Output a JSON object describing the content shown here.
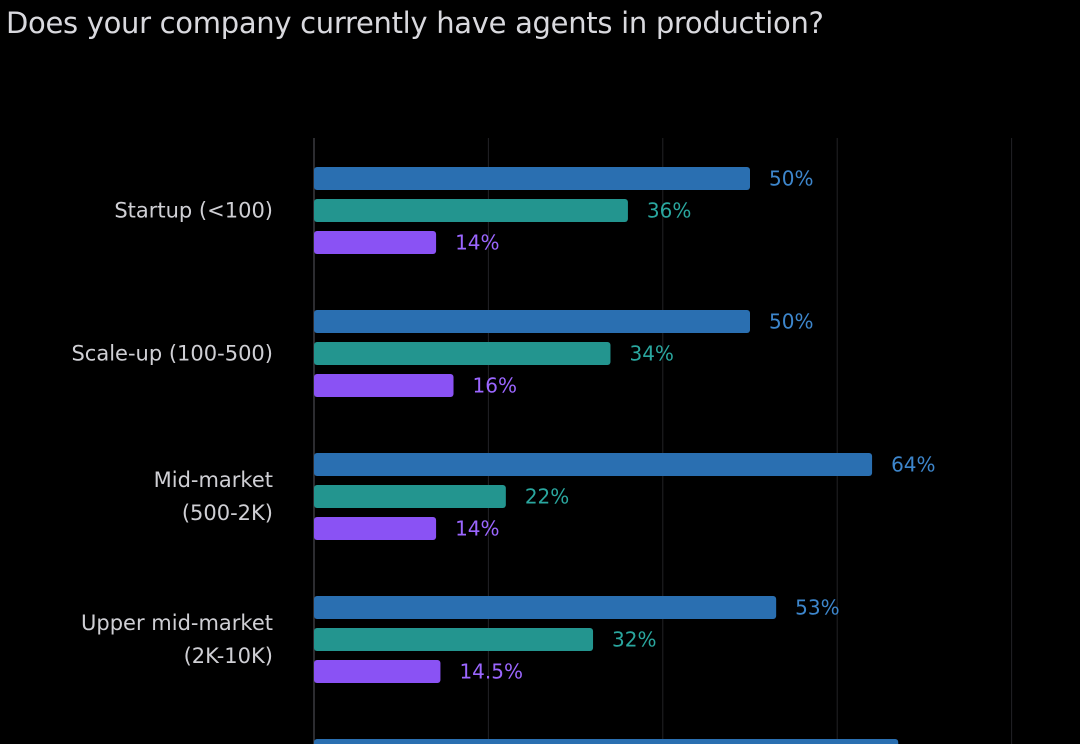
{
  "title": "Does your company currently have agents in production?",
  "colors": {
    "background": "#000000",
    "grid": "#222226",
    "axis": "#3a3a40",
    "category_text": "#cfcfd4"
  },
  "chart_data": {
    "type": "bar",
    "orientation": "horizontal",
    "title": "Does your company currently have agents in production?",
    "categories": [
      [
        "Startup (<100)"
      ],
      [
        "Scale-up (100-500)"
      ],
      [
        "Mid-market",
        "(500-2K)"
      ],
      [
        "Upper mid-market",
        "(2K-10K)"
      ],
      [
        ""
      ]
    ],
    "series": [
      {
        "color": "#2a6fb1",
        "label_color": "#3d86cc",
        "values": [
          50,
          50,
          64,
          53,
          67
        ],
        "labels": [
          "50%",
          "50%",
          "64%",
          "53%",
          ""
        ]
      },
      {
        "color": "#23958f",
        "label_color": "#2aa79f",
        "values": [
          36,
          34,
          22,
          32,
          null
        ],
        "labels": [
          "36%",
          "34%",
          "22%",
          "32%",
          ""
        ]
      },
      {
        "color": "#8a52f4",
        "label_color": "#9b66ff",
        "values": [
          14,
          16,
          14,
          14.5,
          null
        ],
        "labels": [
          "14%",
          "16%",
          "14%",
          "14.5%",
          ""
        ]
      }
    ],
    "xlim": [
      0,
      80
    ],
    "grid": true,
    "legend": "none"
  }
}
